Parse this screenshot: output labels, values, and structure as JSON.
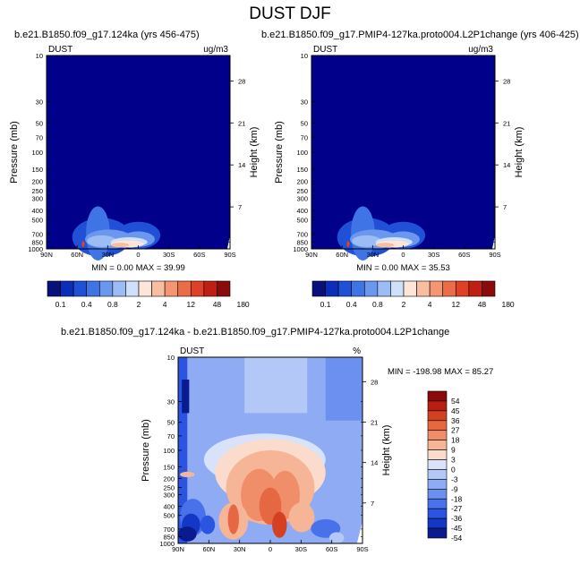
{
  "page_title": "DUST DJF",
  "palette": {
    "background_fill": "#00008b",
    "seq_colors": [
      "#08107a",
      "#0b2db8",
      "#1f50d6",
      "#3f74e6",
      "#6c97ef",
      "#9bbcf4",
      "#cfe0fa",
      "#fde5d8",
      "#f8bea2",
      "#f39671",
      "#ec6c48",
      "#de4126",
      "#c01f14",
      "#8b0a0a"
    ],
    "div_colors": [
      "#0a1b8f",
      "#1537c6",
      "#2b55e0",
      "#4871ea",
      "#6b90f0",
      "#8eabf3",
      "#b3c8f7",
      "#d8e3fa",
      "#fbdccc",
      "#f6b597",
      "#f08e69",
      "#e66842",
      "#d44122",
      "#b81f12",
      "#8b0909"
    ]
  },
  "chart_data": [
    {
      "type": "heatmap",
      "panel_title": "b.e21.B1850.f09_g17.124ka (yrs 456-475)",
      "left_label": "DUST",
      "right_label": "ug/m3",
      "ylabel": "Pressure (mb)",
      "y2label": "Height (km)",
      "y_ticks": [
        "10",
        "30",
        "50",
        "70",
        "100",
        "150",
        "200",
        "250",
        "300",
        "400",
        "500",
        "700",
        "850",
        "1000"
      ],
      "y2_ticks": [
        "28",
        "21",
        "14",
        "7"
      ],
      "x_ticks": [
        "90N",
        "60N",
        "30N",
        "0",
        "30S",
        "60S",
        "90S"
      ],
      "stats": "MIN =   0.00  MAX =  39.99",
      "min": 0.0,
      "max": 39.99,
      "colorbar_labels": [
        "0.1",
        "0.4",
        "0.8",
        "2",
        "4",
        "12",
        "48",
        "180"
      ]
    },
    {
      "type": "heatmap",
      "panel_title": "b.e21.B1850.f09_g17.PMIP4-127ka.proto004.L2P1change (yrs 406-425)",
      "left_label": "DUST",
      "right_label": "ug/m3",
      "ylabel": "Pressure (mb)",
      "y2label": "Height (km)",
      "y_ticks": [
        "10",
        "30",
        "50",
        "70",
        "100",
        "150",
        "200",
        "250",
        "300",
        "400",
        "500",
        "700",
        "850",
        "1000"
      ],
      "y2_ticks": [
        "28",
        "21",
        "14",
        "7"
      ],
      "x_ticks": [
        "90N",
        "60N",
        "30N",
        "0",
        "30S",
        "60S",
        "90S"
      ],
      "stats": "MIN =   0.00  MAX =  35.53",
      "min": 0.0,
      "max": 35.53,
      "colorbar_labels": [
        "0.1",
        "0.4",
        "0.8",
        "2",
        "4",
        "12",
        "48",
        "180"
      ]
    },
    {
      "type": "heatmap",
      "panel_title": "b.e21.B1850.f09_g17.124ka - b.e21.B1850.f09_g17.PMIP4-127ka.proto004.L2P1change",
      "left_label": "DUST",
      "right_label": "%",
      "ylabel": "Pressure (mb)",
      "y2label": "Height (km)",
      "y_ticks": [
        "10",
        "30",
        "50",
        "70",
        "100",
        "150",
        "200",
        "250",
        "300",
        "400",
        "500",
        "700",
        "850",
        "1000"
      ],
      "y2_ticks": [
        "28",
        "21",
        "14",
        "7"
      ],
      "x_ticks": [
        "90N",
        "60N",
        "30N",
        "0",
        "30S",
        "60S",
        "90S"
      ],
      "stats": "MIN = -198.98  MAX =  85.27",
      "min": -198.98,
      "max": 85.27,
      "colorbar_labels": [
        "54",
        "45",
        "36",
        "27",
        "18",
        "9",
        "3",
        "0",
        "-3",
        "-9",
        "-18",
        "-27",
        "-36",
        "-45",
        "-54"
      ]
    }
  ]
}
